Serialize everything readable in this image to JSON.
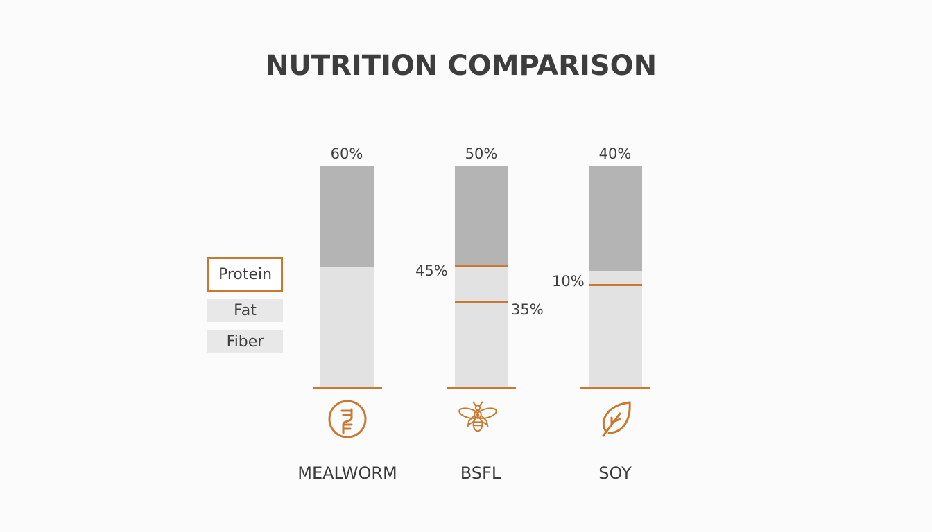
{
  "title": "NUTRITION COMPARISON",
  "legend": [
    {
      "label": "Protein",
      "active": true
    },
    {
      "label": "Fat",
      "active": false
    },
    {
      "label": "Fiber",
      "active": false
    }
  ],
  "colors": {
    "accent": "#c8792f",
    "protein_fill": "#b4b4b4",
    "other_fill": "#e2e2e2"
  },
  "chart_data": {
    "type": "bar",
    "title": "NUTRITION COMPARISON",
    "categories": [
      "MEALWORM",
      "BSFL",
      "SOY"
    ],
    "series": [
      {
        "name": "Protein",
        "values": [
          60,
          50,
          40
        ]
      }
    ],
    "value_labels": [
      "60%",
      "50%",
      "40%"
    ],
    "annotations": [
      {
        "category": "BSFL",
        "label": "45%"
      },
      {
        "category": "BSFL",
        "label": "35%"
      },
      {
        "category": "SOY",
        "label": "10%"
      }
    ],
    "icons": [
      "dna-icon",
      "bee-icon",
      "leaf-icon"
    ],
    "legend_position": "left",
    "grid": false
  }
}
